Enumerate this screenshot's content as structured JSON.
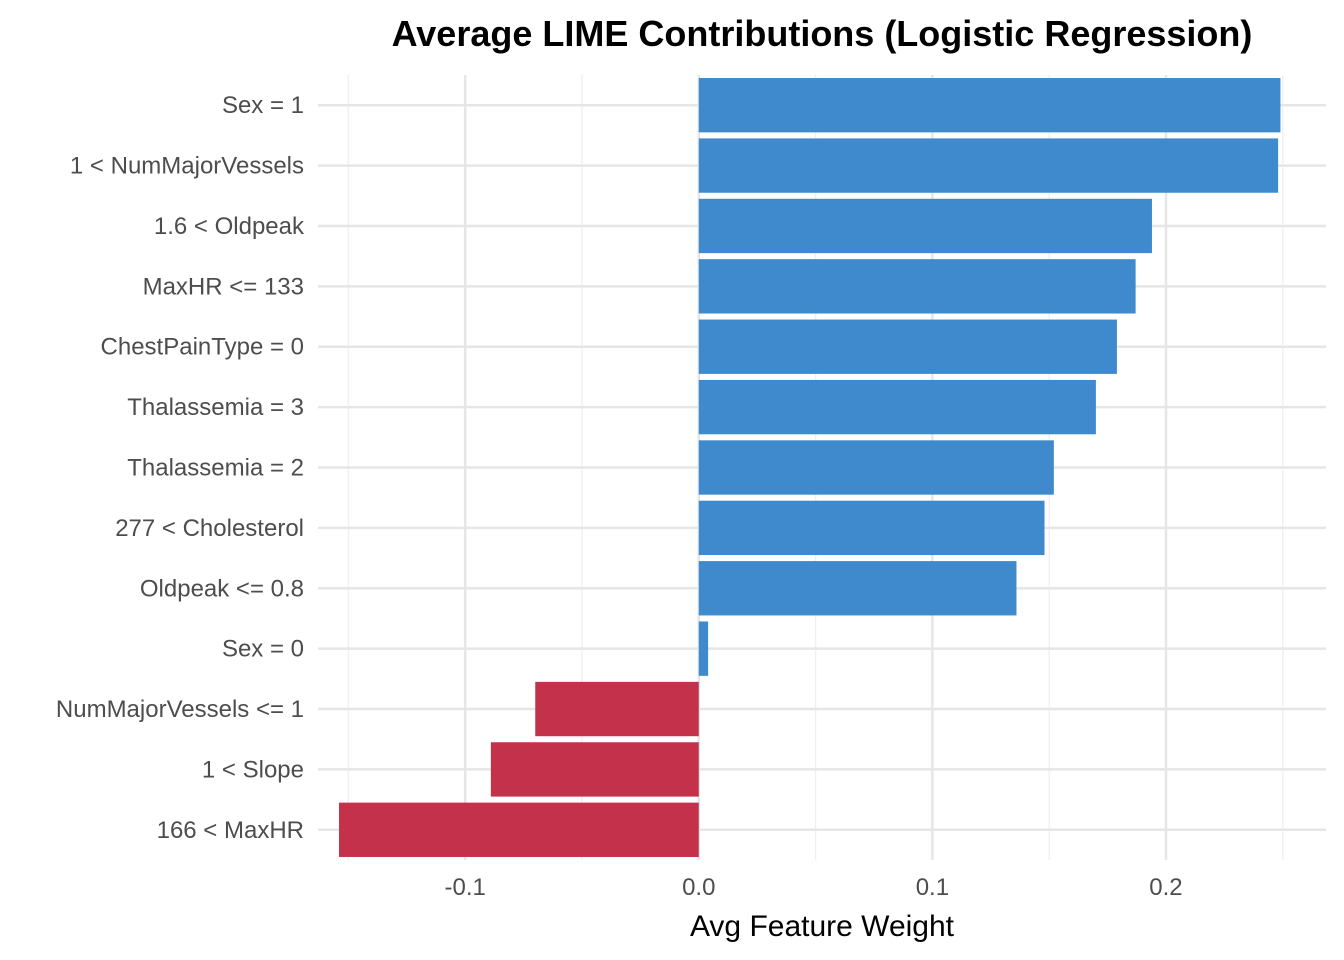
{
  "chart_data": {
    "type": "bar",
    "orientation": "horizontal",
    "title": "Average LIME Contributions (Logistic Regression)",
    "xlabel": "Avg Feature Weight",
    "ylabel": "",
    "xlim": [
      -0.163,
      0.2685
    ],
    "x_ticks": [
      -0.1,
      0.0,
      0.1,
      0.2
    ],
    "x_tick_labels": [
      "-0.1",
      "0.0",
      "0.1",
      "0.2"
    ],
    "grid": true,
    "legend": "none",
    "positive_color": "#3E8ACC",
    "negative_color": "#C3324A",
    "categories": [
      "Sex = 1",
      "1 < NumMajorVessels",
      "1.6 < Oldpeak",
      "MaxHR <= 133",
      "ChestPainType = 0",
      "Thalassemia = 3",
      "Thalassemia = 2",
      "277 < Cholesterol",
      "Oldpeak <= 0.8",
      "Sex = 0",
      "NumMajorVessels <= 1",
      "1 < Slope",
      "166 < MaxHR"
    ],
    "values": [
      0.249,
      0.248,
      0.194,
      0.187,
      0.179,
      0.17,
      0.152,
      0.148,
      0.136,
      0.004,
      -0.07,
      -0.089,
      -0.154
    ]
  }
}
